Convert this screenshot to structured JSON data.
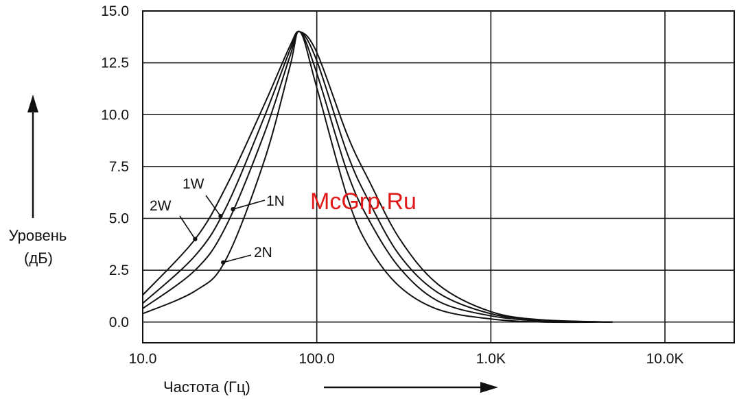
{
  "chart_data": {
    "type": "line",
    "x_scale": "log",
    "xlim": [
      10,
      25000
    ],
    "ylim": [
      -1,
      15
    ],
    "grid": true,
    "legend": "inline labels on curves",
    "xlabel": "Частота (Гц)",
    "ylabel_line1": "Уровень",
    "ylabel_line2": "(дБ)",
    "x_ticks": [
      {
        "value": 10,
        "label": "10.0"
      },
      {
        "value": 100,
        "label": "100.0"
      },
      {
        "value": 1000,
        "label": "1.0K"
      },
      {
        "value": 10000,
        "label": "10.0K"
      }
    ],
    "y_ticks": [
      {
        "value": 15,
        "label": "15.0"
      },
      {
        "value": 12.5,
        "label": "12.5"
      },
      {
        "value": 10,
        "label": "10.0"
      },
      {
        "value": 7.5,
        "label": "7.5"
      },
      {
        "value": 5,
        "label": "5.0"
      },
      {
        "value": 2.5,
        "label": "2.5"
      },
      {
        "value": 0,
        "label": "0.0"
      }
    ],
    "x": [
      10,
      20,
      30,
      50,
      70,
      80,
      100,
      150,
      200,
      300,
      500,
      1000,
      2000,
      5000
    ],
    "series": [
      {
        "name": "2W",
        "values": [
          1.3,
          4.0,
          6.5,
          10.5,
          13.3,
          14.0,
          13.0,
          9.0,
          6.8,
          4.0,
          1.8,
          0.5,
          0.1,
          0.0
        ]
      },
      {
        "name": "1W",
        "values": [
          0.9,
          3.2,
          5.5,
          9.9,
          13.1,
          14.0,
          12.6,
          8.1,
          5.8,
          3.2,
          1.4,
          0.4,
          0.1,
          0.0
        ]
      },
      {
        "name": "1N",
        "values": [
          0.65,
          2.5,
          4.6,
          9.1,
          12.8,
          14.0,
          12.0,
          7.2,
          4.9,
          2.6,
          1.0,
          0.3,
          0.05,
          0.0
        ]
      },
      {
        "name": "2N",
        "values": [
          0.4,
          1.5,
          3.0,
          7.8,
          12.3,
          14.0,
          11.3,
          6.0,
          3.6,
          1.7,
          0.6,
          0.15,
          0.0,
          0.0
        ]
      }
    ],
    "series_labels": [
      "2W",
      "1W",
      "1N",
      "2N"
    ],
    "watermark": "McGrp.Ru",
    "colors": {
      "line": "#111111",
      "grid": "#111111",
      "watermark": "#e01818"
    }
  }
}
